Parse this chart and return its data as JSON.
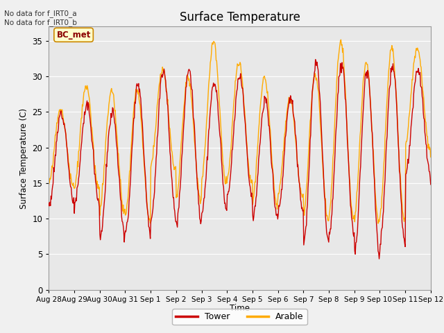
{
  "title": "Surface Temperature",
  "xlabel": "Time",
  "ylabel": "Surface Temperature (C)",
  "ylim": [
    0,
    37
  ],
  "yticks": [
    0,
    5,
    10,
    15,
    20,
    25,
    30,
    35
  ],
  "x_labels": [
    "Aug 28",
    "Aug 29",
    "Aug 30",
    "Aug 31",
    "Sep 1",
    "Sep 2",
    "Sep 3",
    "Sep 4",
    "Sep 5",
    "Sep 6",
    "Sep 7",
    "Sep 8",
    "Sep 9",
    "Sep 10",
    "Sep 11",
    "Sep 12"
  ],
  "tower_color": "#cc0000",
  "arable_color": "#ffaa00",
  "bg_color": "#e8e8e8",
  "plot_bg": "#e8e8e8",
  "legend_items": [
    "Tower",
    "Arable"
  ],
  "annotation_text": "No data for f_IRT0_a\nNo data for f_IRT0_b",
  "bc_met_label": "BC_met",
  "bc_met_bg": "#ffffcc",
  "bc_met_border": "#cc8800",
  "bc_met_text_color": "#8b0000",
  "grid_color": "#ffffff",
  "n_days": 15,
  "n_points_per_day": 48,
  "tower_mins": [
    12,
    12,
    7.5,
    8,
    10,
    9.5,
    11,
    13,
    10,
    11,
    6.5,
    7.5,
    5,
    6.5,
    16,
    14
  ],
  "tower_maxs": [
    25,
    26,
    25,
    29,
    31,
    31,
    29,
    30,
    26.5,
    27,
    32,
    32,
    31,
    31.5,
    31,
    14
  ],
  "arable_mins": [
    14.5,
    14,
    11,
    10,
    17,
    12.5,
    15,
    15,
    12,
    13,
    10,
    10,
    9.5,
    10,
    20,
    19
  ],
  "arable_maxs": [
    25.5,
    28.5,
    28,
    28,
    31,
    30,
    35,
    32,
    30,
    27,
    30.5,
    35,
    32,
    34,
    34,
    20
  ]
}
